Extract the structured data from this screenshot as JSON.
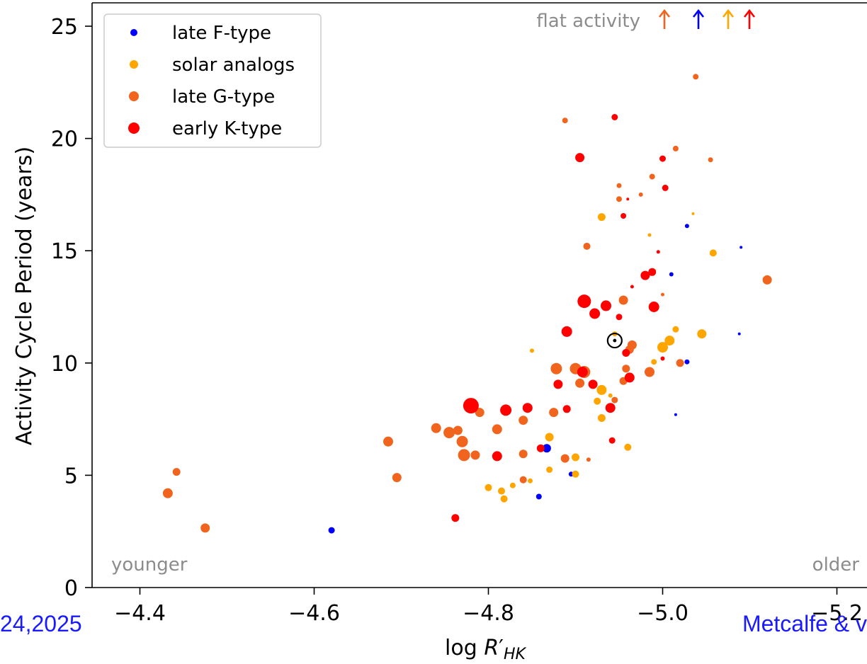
{
  "chart_data": {
    "type": "scatter",
    "xlabel": "log R′HK",
    "ylabel": "Activity Cycle Period (years)",
    "xlim": [
      -4.35,
      -5.2
    ],
    "ylim": [
      0,
      26
    ],
    "x_ticks": [
      -4.4,
      -4.6,
      -4.8,
      -5.0,
      -5.2
    ],
    "x_tick_labels": [
      "−4.4",
      "−4.6",
      "−4.8",
      "−5.0",
      "−5.2"
    ],
    "y_ticks": [
      0,
      5,
      10,
      15,
      20,
      25
    ],
    "y_tick_labels": [
      "0",
      "5",
      "10",
      "15",
      "20",
      "25"
    ],
    "grid": false,
    "legend_position": "top-left",
    "annotations": {
      "flat_activity": "flat activity",
      "younger": "younger",
      "older": "older",
      "left_credit": "24,2025",
      "right_credit": "Metcalfe & v"
    },
    "flat_activity_arrows": [
      {
        "series": "late G-type",
        "color": "#f0641e"
      },
      {
        "series": "late F-type",
        "color": "#0000ff"
      },
      {
        "series": "solar analogs",
        "color": "#ffa500"
      },
      {
        "series": "early K-type",
        "color": "#ff0000"
      }
    ],
    "sun": {
      "x": -4.945,
      "y": 11.0
    },
    "series": [
      {
        "name": "late F-type",
        "color": "#0000ff",
        "points": [
          [
            -4.62,
            2.55,
            9
          ],
          [
            -4.858,
            4.05,
            8
          ],
          [
            -4.867,
            6.2,
            12
          ],
          [
            -4.895,
            5.05,
            7
          ],
          [
            -5.028,
            10.05,
            7
          ],
          [
            -5.01,
            13.95,
            6
          ],
          [
            -5.028,
            16.1,
            6
          ],
          [
            -5.09,
            15.15,
            4
          ],
          [
            -5.088,
            11.3,
            4
          ],
          [
            -5.015,
            7.7,
            4
          ]
        ]
      },
      {
        "name": "solar analogs",
        "color": "#ffa500",
        "points": [
          [
            -4.8,
            4.45,
            10
          ],
          [
            -4.815,
            4.3,
            10
          ],
          [
            -4.818,
            3.95,
            10
          ],
          [
            -4.828,
            4.55,
            8
          ],
          [
            -4.84,
            4.85,
            7
          ],
          [
            -4.848,
            4.75,
            7
          ],
          [
            -4.87,
            6.7,
            12
          ],
          [
            -4.87,
            5.25,
            9
          ],
          [
            -4.85,
            10.55,
            6
          ],
          [
            -4.9,
            5.8,
            11
          ],
          [
            -4.9,
            5.05,
            10
          ],
          [
            -4.93,
            7.55,
            11
          ],
          [
            -4.925,
            8.3,
            10
          ],
          [
            -4.93,
            8.8,
            14
          ],
          [
            -4.96,
            6.25,
            10
          ],
          [
            -4.94,
            8.55,
            6
          ],
          [
            -4.945,
            11.3,
            7
          ],
          [
            -4.93,
            16.5,
            11
          ],
          [
            -4.99,
            10.05,
            8
          ],
          [
            -5.0,
            10.7,
            15
          ],
          [
            -5.008,
            11.0,
            14
          ],
          [
            -5.015,
            11.5,
            9
          ],
          [
            -5.045,
            11.3,
            13
          ],
          [
            -5.058,
            14.9,
            10
          ],
          [
            -4.99,
            14.1,
            6
          ],
          [
            -4.985,
            15.7,
            5
          ],
          [
            -5.035,
            16.65,
            4
          ]
        ]
      },
      {
        "name": "late G-type",
        "color": "#f0641e",
        "points": [
          [
            -4.432,
            4.2,
            14
          ],
          [
            -4.442,
            5.15,
            11
          ],
          [
            -4.475,
            2.65,
            13
          ],
          [
            -4.685,
            6.5,
            14
          ],
          [
            -4.695,
            4.9,
            13
          ],
          [
            -4.74,
            7.1,
            14
          ],
          [
            -4.755,
            6.9,
            16
          ],
          [
            -4.765,
            7.0,
            13
          ],
          [
            -4.77,
            6.5,
            16
          ],
          [
            -4.772,
            5.9,
            17
          ],
          [
            -4.79,
            7.8,
            13
          ],
          [
            -4.785,
            5.9,
            13
          ],
          [
            -4.81,
            7.05,
            14
          ],
          [
            -4.84,
            7.45,
            13
          ],
          [
            -4.84,
            5.95,
            12
          ],
          [
            -4.84,
            4.8,
            10
          ],
          [
            -4.875,
            7.8,
            13
          ],
          [
            -4.878,
            9.75,
            16
          ],
          [
            -4.888,
            5.75,
            12
          ],
          [
            -4.9,
            9.75,
            16
          ],
          [
            -4.91,
            9.6,
            17
          ],
          [
            -4.905,
            9.1,
            13
          ],
          [
            -4.915,
            5.7,
            6
          ],
          [
            -4.945,
            8.35,
            9
          ],
          [
            -4.955,
            9.2,
            11
          ],
          [
            -4.958,
            9.75,
            11
          ],
          [
            -4.962,
            10.6,
            12
          ],
          [
            -4.965,
            10.8,
            13
          ],
          [
            -4.985,
            9.6,
            14
          ],
          [
            -5.02,
            10.0,
            11
          ],
          [
            -4.955,
            12.8,
            13
          ],
          [
            -4.913,
            15.2,
            10
          ],
          [
            -4.888,
            20.8,
            8
          ],
          [
            -4.95,
            17.3,
            8
          ],
          [
            -4.95,
            17.9,
            7
          ],
          [
            -4.975,
            17.5,
            6
          ],
          [
            -4.988,
            18.3,
            8
          ],
          [
            -5.015,
            19.55,
            8
          ],
          [
            -5.038,
            22.75,
            8
          ],
          [
            -5.055,
            19.05,
            7
          ],
          [
            -5.0,
            13.05,
            5
          ],
          [
            -5.12,
            13.7,
            13
          ]
        ]
      },
      {
        "name": "early K-type",
        "color": "#ff0000",
        "points": [
          [
            -4.762,
            3.1,
            11
          ],
          [
            -4.78,
            8.1,
            22
          ],
          [
            -4.81,
            5.85,
            14
          ],
          [
            -4.82,
            7.9,
            16
          ],
          [
            -4.845,
            8.0,
            14
          ],
          [
            -4.86,
            6.2,
            11
          ],
          [
            -4.88,
            9.05,
            13
          ],
          [
            -4.89,
            7.95,
            11
          ],
          [
            -4.89,
            11.4,
            15
          ],
          [
            -4.908,
            9.6,
            15
          ],
          [
            -4.91,
            12.75,
            19
          ],
          [
            -4.922,
            12.2,
            15
          ],
          [
            -4.92,
            9.05,
            13
          ],
          [
            -4.935,
            12.55,
            15
          ],
          [
            -4.94,
            8.0,
            14
          ],
          [
            -4.942,
            6.55,
            9
          ],
          [
            -4.945,
            20.95,
            9
          ],
          [
            -4.958,
            10.45,
            11
          ],
          [
            -4.962,
            9.35,
            14
          ],
          [
            -4.98,
            13.9,
            13
          ],
          [
            -4.988,
            14.05,
            11
          ],
          [
            -4.99,
            12.5,
            15
          ],
          [
            -4.905,
            19.15,
            13
          ],
          [
            -4.95,
            12.05,
            9
          ],
          [
            -4.955,
            16.55,
            8
          ],
          [
            -4.965,
            13.4,
            5
          ],
          [
            -4.995,
            14.95,
            5
          ],
          [
            -5.0,
            19.1,
            9
          ],
          [
            -5.003,
            17.8,
            9
          ],
          [
            -5.0,
            10.2,
            6
          ],
          [
            -4.96,
            17.3,
            4
          ]
        ]
      }
    ]
  }
}
